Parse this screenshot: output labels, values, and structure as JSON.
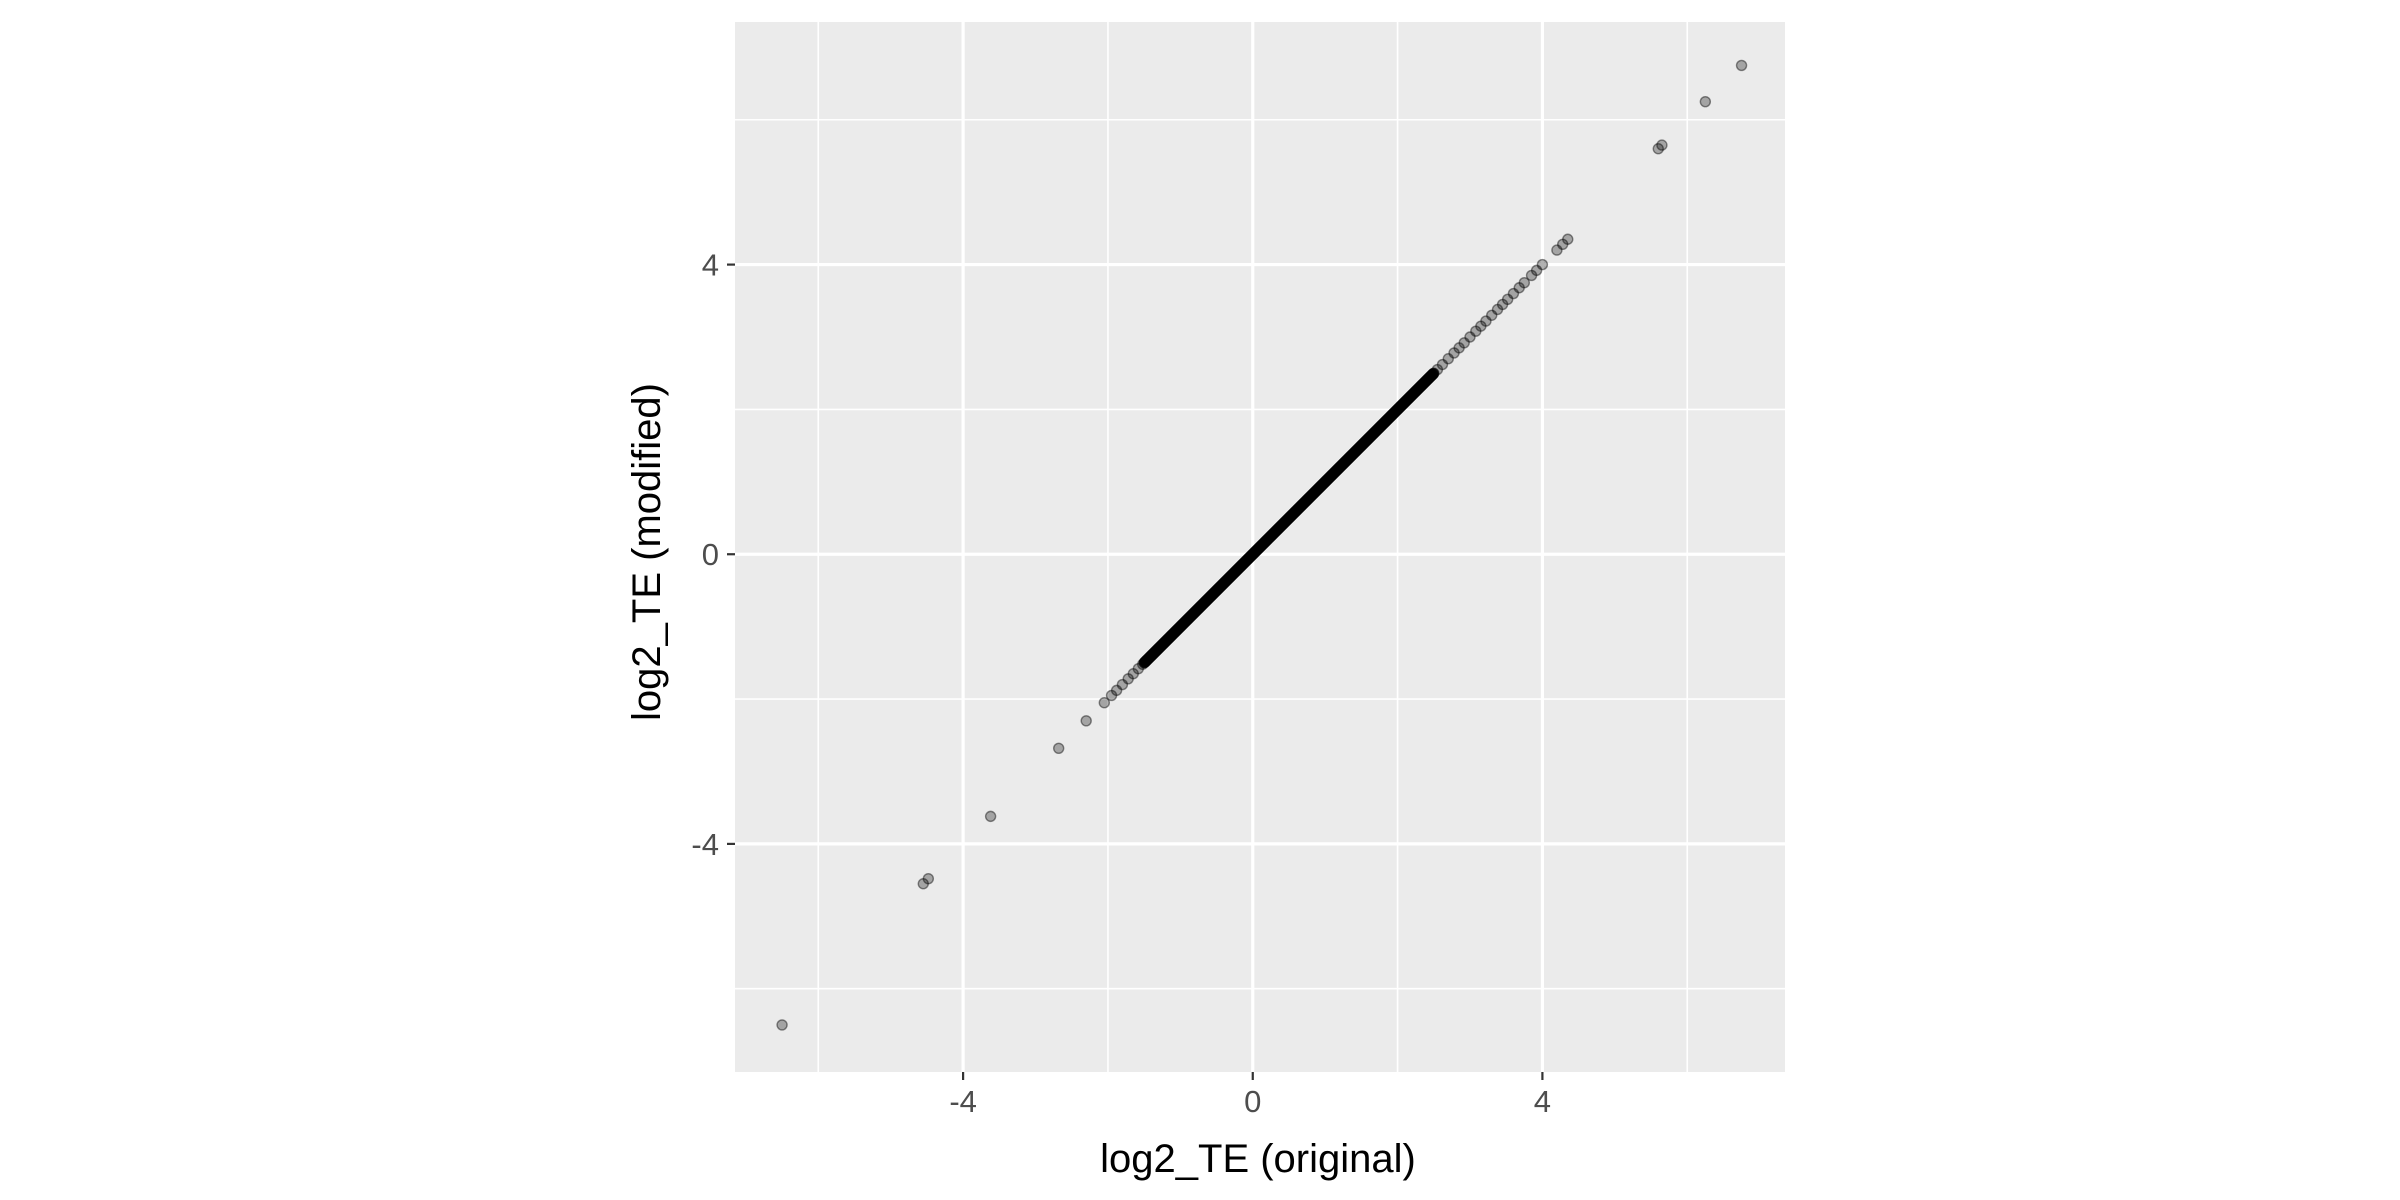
{
  "chart_data": {
    "type": "scatter",
    "title": "",
    "xlabel": "log2_TE (original)",
    "ylabel": "log2_TE (modified)",
    "xlim": [
      -7.15,
      7.35
    ],
    "ylim": [
      -7.15,
      7.35
    ],
    "x_ticks": [
      -4,
      0,
      4
    ],
    "y_ticks": [
      -4,
      0,
      4
    ],
    "x_tick_labels": [
      "-4",
      "0",
      "4"
    ],
    "y_tick_labels": [
      "-4",
      "0",
      "4"
    ],
    "grid": true,
    "legend": "none",
    "colors": {
      "panel_background": "#ebebeb",
      "grid_line": "#ffffff",
      "point": "#000000",
      "point_alpha": 0.3
    },
    "series": [
      {
        "x": [
          -6.5,
          -4.55,
          -4.48,
          -3.62,
          -2.68,
          -2.3,
          -2.05,
          -1.95,
          -1.88,
          -1.8,
          -1.72,
          -1.65,
          -1.58,
          -1.52,
          2.55,
          2.62,
          2.7,
          2.78,
          2.85,
          2.92,
          3.0,
          3.08,
          3.15,
          3.22,
          3.3,
          3.38,
          3.45,
          3.52,
          3.6,
          3.68,
          3.75,
          3.85,
          3.92,
          4.0,
          4.2,
          4.28,
          4.35,
          5.6,
          5.65,
          6.25,
          6.75
        ],
        "y": [
          -6.5,
          -4.55,
          -4.48,
          -3.62,
          -2.68,
          -2.3,
          -2.05,
          -1.95,
          -1.88,
          -1.8,
          -1.72,
          -1.65,
          -1.58,
          -1.52,
          2.55,
          2.62,
          2.7,
          2.78,
          2.85,
          2.92,
          3.0,
          3.08,
          3.15,
          3.22,
          3.3,
          3.38,
          3.45,
          3.52,
          3.6,
          3.68,
          3.75,
          3.85,
          3.92,
          4.0,
          4.2,
          4.28,
          4.35,
          5.6,
          5.65,
          6.25,
          6.75
        ]
      },
      {
        "dense_range": [
          -1.5,
          2.5
        ],
        "dense_step": 0.004
      }
    ]
  }
}
